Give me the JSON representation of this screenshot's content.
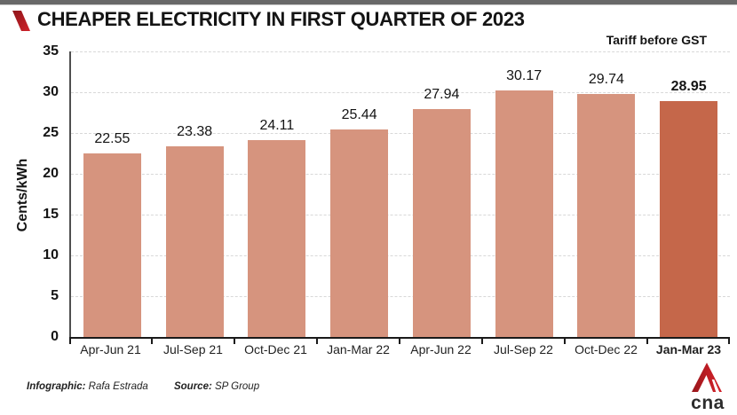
{
  "header": {
    "title": "CHEAPER ELECTRICITY IN FIRST QUARTER OF 2023",
    "note": "Tariff before GST",
    "accent_color": "#c0191f"
  },
  "chart_data": {
    "type": "bar",
    "title": "CHEAPER ELECTRICITY IN FIRST QUARTER OF 2023",
    "subtitle": "Tariff before GST",
    "categories": [
      "Apr-Jun 21",
      "Jul-Sep 21",
      "Oct-Dec 21",
      "Jan-Mar 22",
      "Apr-Jun 22",
      "Jul-Sep 22",
      "Oct-Dec 22",
      "Jan-Mar 23"
    ],
    "values": [
      22.55,
      23.38,
      24.11,
      25.44,
      27.94,
      30.17,
      29.74,
      28.95
    ],
    "value_labels": [
      "22.55",
      "23.38",
      "24.11",
      "25.44",
      "27.94",
      "30.17",
      "29.74",
      "28.95"
    ],
    "xlabel": "",
    "ylabel": "Cents/kWh",
    "ylim": [
      0,
      35
    ],
    "yticks": [
      0,
      5,
      10,
      15,
      20,
      25,
      30,
      35
    ],
    "grid": "horizontal-dashed",
    "legend": "none",
    "bar_color": "#d6947e",
    "highlight_color": "#c5674a",
    "highlight_index": 7
  },
  "footer": {
    "credit_label": "Infographic:",
    "credit_value": "Rafa Estrada",
    "source_label": "Source:",
    "source_value": "SP Group"
  },
  "logo": {
    "name": "CNA",
    "text": "cna",
    "red_dark": "#96161b",
    "red_bright": "#d2232b",
    "dark": "#2d2d2d"
  }
}
